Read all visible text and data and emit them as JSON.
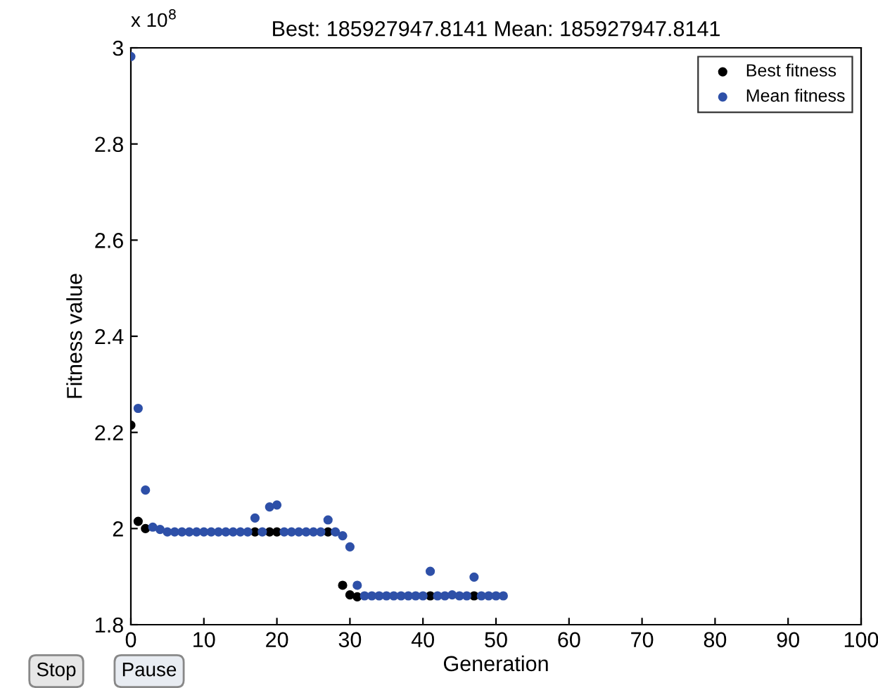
{
  "chart_data": {
    "type": "scatter",
    "title": "Best: 185927947.8141 Mean: 185927947.8141",
    "xlabel": "Generation",
    "ylabel": "Fitness value",
    "x": [
      0,
      1,
      2,
      3,
      4,
      5,
      6,
      7,
      8,
      9,
      10,
      11,
      12,
      13,
      14,
      15,
      16,
      17,
      18,
      19,
      20,
      21,
      22,
      23,
      24,
      25,
      26,
      27,
      28,
      29,
      30,
      31,
      32,
      33,
      34,
      35,
      36,
      37,
      38,
      39,
      40,
      41,
      42,
      43,
      44,
      45,
      46,
      47,
      48,
      49,
      50,
      51
    ],
    "series": [
      {
        "name": "Best fitness",
        "color": "#000000",
        "values": [
          2.215,
          2.015,
          2.0,
          null,
          null,
          null,
          null,
          null,
          null,
          null,
          null,
          null,
          null,
          null,
          null,
          null,
          null,
          1.993,
          null,
          1.993,
          1.993,
          null,
          null,
          null,
          null,
          null,
          null,
          1.993,
          null,
          1.882,
          1.862,
          1.858,
          null,
          null,
          null,
          null,
          null,
          null,
          null,
          null,
          null,
          1.86,
          null,
          null,
          null,
          null,
          null,
          1.86,
          null,
          null,
          null,
          null
        ]
      },
      {
        "name": "Mean fitness",
        "color": "#2e50a8",
        "values": [
          2.982,
          2.25,
          2.08,
          2.003,
          1.998,
          1.993,
          1.993,
          1.993,
          1.993,
          1.993,
          1.993,
          1.993,
          1.993,
          1.993,
          1.993,
          1.993,
          1.993,
          2.022,
          1.993,
          2.045,
          2.049,
          1.993,
          1.993,
          1.993,
          1.993,
          1.993,
          1.993,
          2.018,
          1.993,
          1.985,
          1.962,
          1.882,
          1.86,
          1.86,
          1.86,
          1.86,
          1.86,
          1.86,
          1.86,
          1.86,
          1.86,
          1.911,
          1.86,
          1.86,
          1.862,
          1.86,
          1.86,
          1.899,
          1.86,
          1.86,
          1.86,
          1.86
        ]
      }
    ],
    "xlim": [
      0,
      100
    ],
    "xticks": [
      0,
      10,
      20,
      30,
      40,
      50,
      60,
      70,
      80,
      90,
      100
    ],
    "ylim": [
      1.8,
      3
    ],
    "yticks": [
      1.8,
      2,
      2.2,
      2.4,
      2.6,
      2.8,
      3
    ],
    "marker": "circle",
    "legend": "top right",
    "grid": false,
    "annotations": [
      "x 10$^{8}$",
      "Stop",
      "Pause"
    ]
  }
}
